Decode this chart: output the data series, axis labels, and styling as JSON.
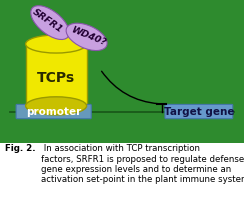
{
  "fig_bg": "#ffffff",
  "diagram_bg": "#2e8b2e",
  "cylinder_color": "#f0e800",
  "cylinder_edge": "#999900",
  "cylinder_bottom_color": "#c8c000",
  "promoter_color": "#6699bb",
  "promoter_text": "promoter",
  "target_color": "#6699cc",
  "target_text": "Target gene",
  "ellipse1_color": "#c8a0e0",
  "ellipse1_text": "SRFR1",
  "ellipse2_color": "#c8a0e0",
  "ellipse2_text": "WD40?",
  "cylinder_text": "TCPs",
  "caption_bold": "Fig. 2.",
  "caption_normal": " In association with TCP transcription\nfactors, SRFR1 is proposed to regulate defense\ngene expression levels and to determine an\nactivation set-point in the plant immune system.",
  "diagram_green_line_color": "#1a6b1a"
}
